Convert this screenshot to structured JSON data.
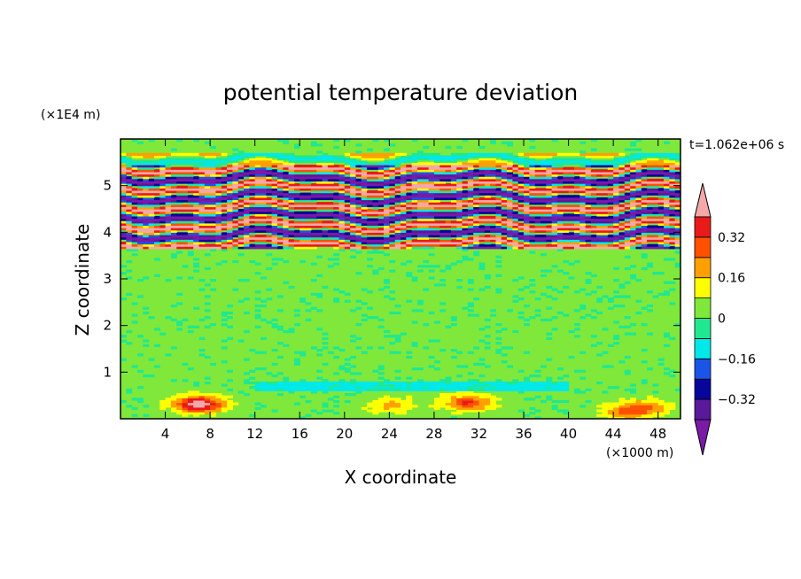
{
  "chart_data": {
    "type": "heatmap",
    "title": "potential temperature deviation",
    "xlabel": "X coordinate",
    "ylabel": "Z coordinate",
    "x_unit": "(×1000 m)",
    "y_unit": "(×1E4 m)",
    "time_label": "t=1.062e+06 s",
    "xlim": [
      0,
      50
    ],
    "ylim": [
      0,
      6
    ],
    "x_ticks": [
      4,
      8,
      12,
      16,
      20,
      24,
      28,
      32,
      36,
      40,
      44,
      48
    ],
    "y_ticks": [
      1,
      2,
      3,
      4,
      5
    ],
    "colorbar": {
      "levels": [
        -0.4,
        -0.32,
        -0.24,
        -0.16,
        -0.08,
        0,
        0.08,
        0.16,
        0.24,
        0.32,
        0.4
      ],
      "labeled": [
        "0.32",
        "0.16",
        "0",
        "−0.16",
        "−0.32"
      ],
      "labeled_values": [
        0.32,
        0.16,
        0,
        -0.16,
        -0.32
      ],
      "colors": [
        "#7a1aa6",
        "#5a189a",
        "#06069a",
        "#1a55e8",
        "#00e8e8",
        "#20e890",
        "#80e83a",
        "#ffff00",
        "#ffa000",
        "#ff5000",
        "#e81a1a",
        "#f4a8a8"
      ],
      "extend": "both"
    },
    "field_bands": [
      {
        "z": 0.35,
        "x_from": 0,
        "x_to": 50,
        "description": "boundary layer patches",
        "value": 0.3
      },
      {
        "z": 3.7,
        "x_from": 0,
        "x_to": 50,
        "value": 0.0
      },
      {
        "z": 3.85,
        "x_from": 0,
        "x_to": 50,
        "value": -0.4
      },
      {
        "z": 4.1,
        "x_from": 0,
        "x_to": 50,
        "value": 0.4
      },
      {
        "z": 4.3,
        "x_from": 0,
        "x_to": 50,
        "value": -0.4
      },
      {
        "z": 4.5,
        "x_from": 0,
        "x_to": 50,
        "value": 0.4
      },
      {
        "z": 4.7,
        "x_from": 0,
        "x_to": 50,
        "value": -0.4
      },
      {
        "z": 4.95,
        "x_from": 0,
        "x_to": 50,
        "value": 0.4
      },
      {
        "z": 5.1,
        "x_from": 0,
        "x_to": 50,
        "value": -0.4
      },
      {
        "z": 5.35,
        "x_from": 0,
        "x_to": 50,
        "value": 0.4
      },
      {
        "z": 5.55,
        "x_from": 0,
        "x_to": 50,
        "value": 0.1
      }
    ]
  }
}
